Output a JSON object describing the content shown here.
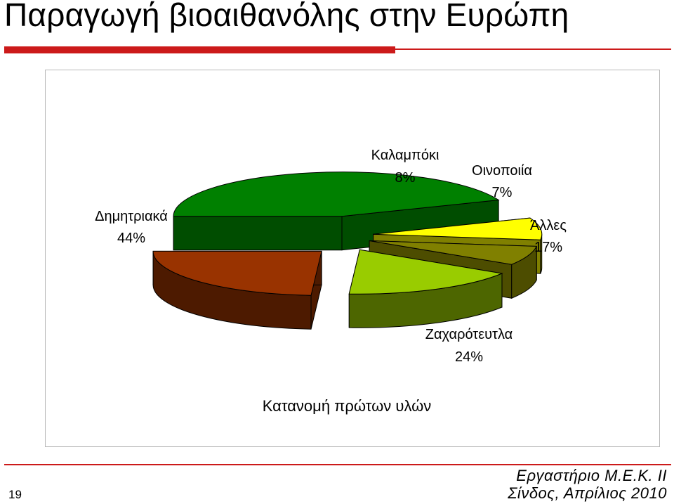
{
  "slide": {
    "title": "Παραγωγή βιοαιθανόλης στην Ευρώπη",
    "number": "19",
    "footer_line1": "Εργαστήριο Μ.Ε.Κ. ΙΙ",
    "footer_line2": "Σίνδος, Απρίλιος 2010"
  },
  "colors": {
    "accent": "#cc1a1a",
    "frame": "#b8b8b8"
  },
  "chart_data": {
    "type": "pie",
    "style": "3d-exploded",
    "title": "Κατανομή πρώτων υλών",
    "slices": [
      {
        "label": "Δημητριακά",
        "value": 44,
        "value_label": "44%",
        "color": "#008000",
        "side_color": "#004d00"
      },
      {
        "label": "Καλαμπόκι",
        "value": 8,
        "value_label": "8%",
        "color": "#ffff00",
        "side_color": "#808000"
      },
      {
        "label": "Οινοποιία",
        "value": 7,
        "value_label": "7%",
        "color": "#808000",
        "side_color": "#4d4d00"
      },
      {
        "label": "Άλλες",
        "value": 17,
        "value_label": "17%",
        "color": "#99cc00",
        "side_color": "#4d6600"
      },
      {
        "label": "Ζαχαρότευτλα",
        "value": 24,
        "value_label": "24%",
        "color": "#993300",
        "side_color": "#4d1a00"
      }
    ]
  }
}
